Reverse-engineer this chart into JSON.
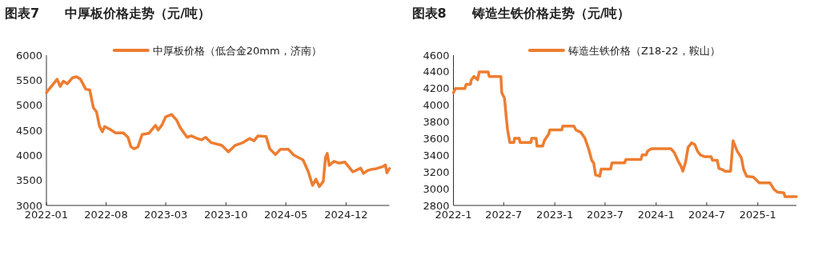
{
  "chart_data": [
    {
      "type": "line",
      "title": "图表7　　中厚板价格走势（元/吨）",
      "legend": "top",
      "grid": false,
      "marker": "none",
      "line_style": "solid",
      "xlim": [
        "2022-01-01",
        "2025-05-04"
      ],
      "xticks": [
        "2022-01",
        "2022-08",
        "2023-03",
        "2023-10",
        "2024-05",
        "2024-12"
      ],
      "ylim": [
        3000,
        6000
      ],
      "yticks": [
        3000,
        3500,
        4000,
        4500,
        5000,
        5500,
        6000
      ],
      "series": [
        {
          "name": "中厚板价格（低合金20mm，济南）",
          "color": "#ed7d31",
          "x": [
            "2022-01-01",
            "2022-01-05",
            "2022-02-08",
            "2022-02-19",
            "2022-03-02",
            "2022-03-16",
            "2022-04-04",
            "2022-04-18",
            "2022-05-02",
            "2022-05-21",
            "2022-06-04",
            "2022-06-17",
            "2022-06-28",
            "2022-07-09",
            "2022-07-19",
            "2022-07-27",
            "2022-08-15",
            "2022-09-03",
            "2022-10-01",
            "2022-10-18",
            "2022-10-28",
            "2022-11-08",
            "2022-11-22",
            "2022-12-07",
            "2022-12-31",
            "2023-01-24",
            "2023-02-02",
            "2023-02-16",
            "2023-03-01",
            "2023-03-22",
            "2023-04-08",
            "2023-04-22",
            "2023-05-16",
            "2023-05-30",
            "2023-06-22",
            "2023-07-06",
            "2023-07-21",
            "2023-08-09",
            "2023-09-16",
            "2023-10-10",
            "2023-11-03",
            "2023-12-01",
            "2023-12-24",
            "2024-01-09",
            "2024-01-23",
            "2024-02-21",
            "2024-03-05",
            "2024-03-25",
            "2024-04-12",
            "2024-05-10",
            "2024-05-29",
            "2024-07-01",
            "2024-07-20",
            "2024-08-04",
            "2024-08-16",
            "2024-08-28",
            "2024-09-11",
            "2024-09-19",
            "2024-09-25",
            "2024-10-02",
            "2024-10-19",
            "2024-11-07",
            "2024-11-27",
            "2024-12-10",
            "2024-12-25",
            "2025-01-13",
            "2025-01-22",
            "2025-02-01",
            "2025-02-15",
            "2025-03-01",
            "2025-03-19",
            "2025-04-11",
            "2025-04-20",
            "2025-04-25",
            "2025-05-04"
          ],
          "values": [
            5250,
            5285,
            5520,
            5375,
            5480,
            5430,
            5550,
            5570,
            5520,
            5320,
            5305,
            4950,
            4870,
            4575,
            4470,
            4575,
            4520,
            4450,
            4450,
            4360,
            4175,
            4130,
            4165,
            4415,
            4440,
            4600,
            4505,
            4610,
            4770,
            4815,
            4710,
            4550,
            4360,
            4390,
            4335,
            4310,
            4360,
            4255,
            4200,
            4070,
            4200,
            4255,
            4335,
            4290,
            4390,
            4375,
            4130,
            4015,
            4120,
            4120,
            4005,
            3910,
            3670,
            3400,
            3525,
            3375,
            3480,
            3960,
            4040,
            3800,
            3880,
            3845,
            3865,
            3775,
            3670,
            3720,
            3745,
            3640,
            3695,
            3720,
            3735,
            3775,
            3810,
            3650,
            3735
          ]
        }
      ]
    },
    {
      "type": "line",
      "title": "图表8　　铸造生铁价格走势（元/吨）",
      "legend": "top",
      "grid": false,
      "marker": "none",
      "line_style": "solid",
      "xlim": [
        "2022-01-01",
        "2025-05-20"
      ],
      "xticks": [
        {
          "value": "2022-01",
          "label": "2022-1"
        },
        {
          "value": "2022-07",
          "label": "2022-7"
        },
        {
          "value": "2023-01",
          "label": "2023-1"
        },
        {
          "value": "2023-07",
          "label": "2023-7"
        },
        {
          "value": "2024-01",
          "label": "2024-1"
        },
        {
          "value": "2024-07",
          "label": "2024-7"
        },
        {
          "value": "2025-01",
          "label": "2025-1"
        }
      ],
      "ylim": [
        2800,
        4600
      ],
      "yticks": [
        2800,
        3000,
        3200,
        3400,
        3600,
        3800,
        4000,
        4200,
        4400,
        4600
      ],
      "series": [
        {
          "name": "铸造生铁价格（Z18-22，鞍山）",
          "color": "#ed7d31",
          "x": [
            "2022-01-01",
            "2022-01-08",
            "2022-02-11",
            "2022-02-16",
            "2022-03-03",
            "2022-03-06",
            "2022-03-16",
            "2022-03-29",
            "2022-04-04",
            "2022-05-06",
            "2022-05-10",
            "2022-06-21",
            "2022-06-24",
            "2022-07-04",
            "2022-07-10",
            "2022-07-15",
            "2022-07-23",
            "2022-08-07",
            "2022-08-09",
            "2022-08-26",
            "2022-08-29",
            "2022-10-07",
            "2022-10-10",
            "2022-10-26",
            "2022-10-29",
            "2022-11-18",
            "2022-11-25",
            "2022-12-10",
            "2022-12-14",
            "2023-01-26",
            "2023-01-30",
            "2023-03-11",
            "2023-03-18",
            "2023-04-05",
            "2023-04-19",
            "2023-05-04",
            "2023-05-14",
            "2023-05-21",
            "2023-05-28",
            "2023-06-12",
            "2023-06-17",
            "2023-07-21",
            "2023-07-26",
            "2023-09-09",
            "2023-09-14",
            "2023-11-07",
            "2023-11-12",
            "2023-11-26",
            "2023-12-01",
            "2023-12-15",
            "2024-02-23",
            "2024-03-07",
            "2024-03-22",
            "2024-04-01",
            "2024-04-06",
            "2024-04-16",
            "2024-04-25",
            "2024-05-08",
            "2024-05-19",
            "2024-05-29",
            "2024-06-08",
            "2024-06-23",
            "2024-07-17",
            "2024-07-22",
            "2024-08-08",
            "2024-08-14",
            "2024-08-26",
            "2024-09-05",
            "2024-09-25",
            "2024-10-04",
            "2024-10-19",
            "2024-11-03",
            "2024-11-11",
            "2024-11-22",
            "2024-12-16",
            "2025-01-06",
            "2025-02-14",
            "2025-03-01",
            "2025-03-13",
            "2025-04-05",
            "2025-04-09",
            "2025-05-20"
          ],
          "values": [
            4150,
            4200,
            4200,
            4250,
            4250,
            4300,
            4345,
            4305,
            4400,
            4400,
            4345,
            4345,
            4150,
            4085,
            3865,
            3705,
            3555,
            3555,
            3605,
            3605,
            3555,
            3555,
            3605,
            3605,
            3510,
            3510,
            3580,
            3655,
            3705,
            3705,
            3750,
            3750,
            3705,
            3675,
            3610,
            3465,
            3340,
            3310,
            3165,
            3150,
            3235,
            3235,
            3310,
            3310,
            3350,
            3350,
            3405,
            3405,
            3450,
            3480,
            3480,
            3430,
            3320,
            3260,
            3210,
            3320,
            3495,
            3550,
            3530,
            3450,
            3405,
            3385,
            3385,
            3340,
            3340,
            3245,
            3230,
            3210,
            3210,
            3575,
            3450,
            3370,
            3230,
            3150,
            3140,
            3070,
            3070,
            2990,
            2960,
            2950,
            2905,
            2905
          ]
        }
      ]
    }
  ]
}
